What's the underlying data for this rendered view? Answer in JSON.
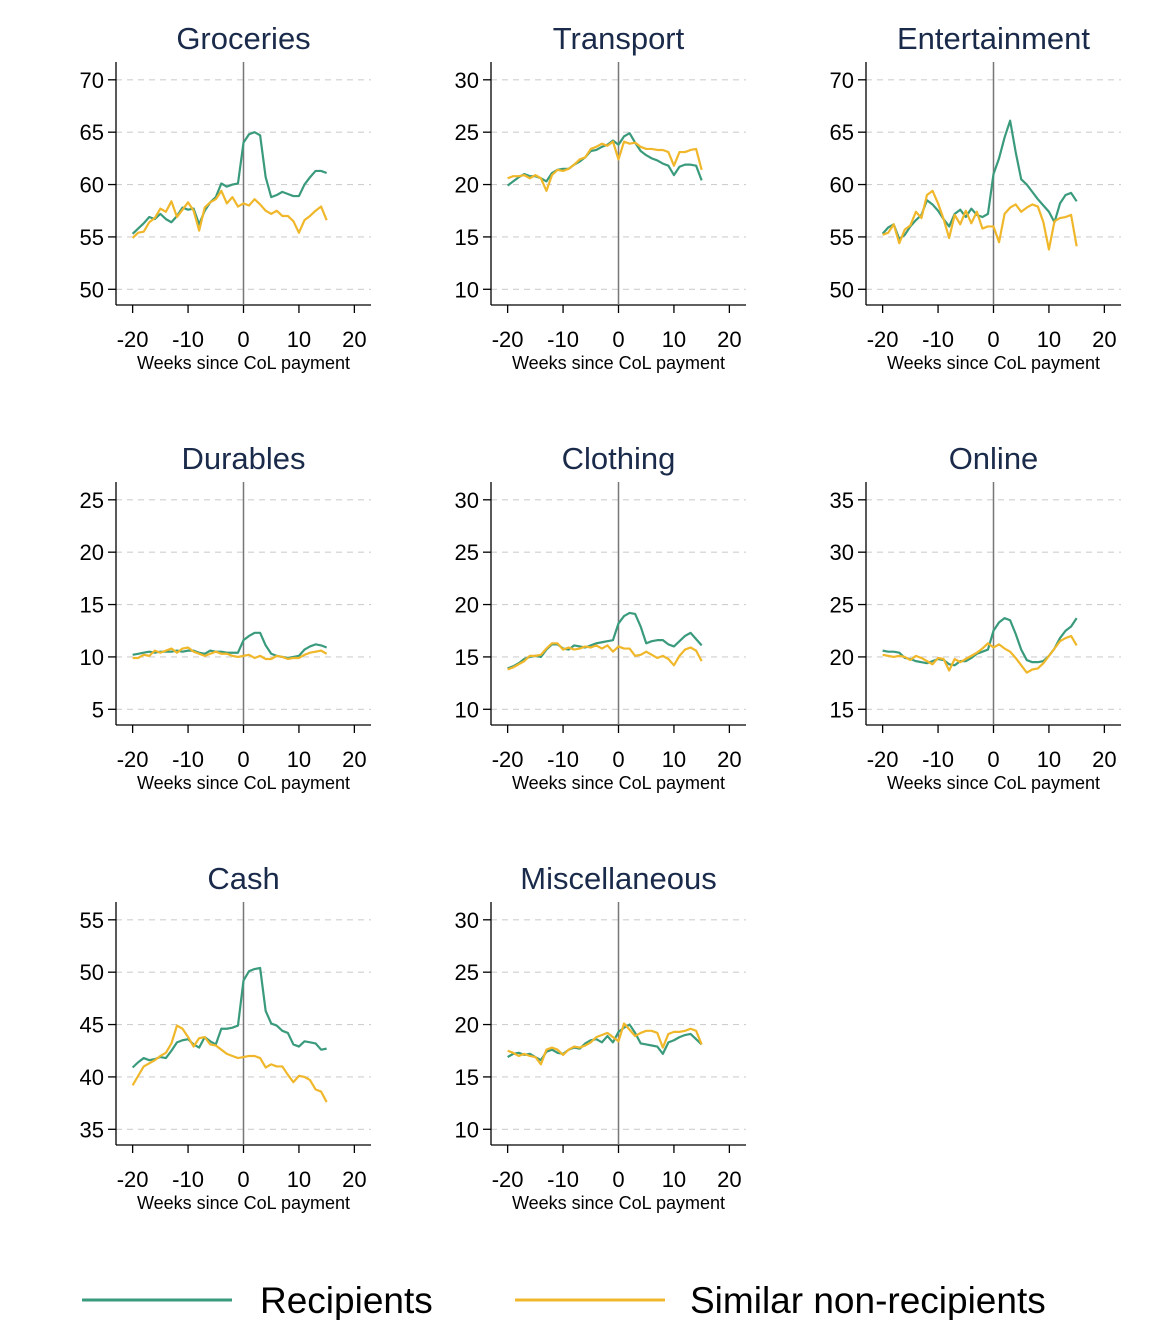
{
  "chart_data": [
    {
      "type": "line",
      "title": "Groceries",
      "xlabel": "Weeks since CoL payment",
      "x": [
        -20,
        -19,
        -18,
        -17,
        -16,
        -15,
        -14,
        -13,
        -12,
        -11,
        -10,
        -9,
        -8,
        -7,
        -6,
        -5,
        -4,
        -3,
        -2,
        -1,
        0,
        1,
        2,
        3,
        4,
        5,
        6,
        7,
        8,
        9,
        10,
        11,
        12,
        13,
        14,
        15
      ],
      "xlim": [
        -23,
        23
      ],
      "xticks": [
        -20,
        -10,
        0,
        10,
        20
      ],
      "ylim": [
        48.5,
        71.7
      ],
      "yticks": [
        50,
        55,
        60,
        65,
        70
      ],
      "grid": true,
      "vline": 0,
      "series": [
        {
          "name": "Recipients",
          "color": "#3a9a7c",
          "values": [
            55.3,
            55.8,
            56.3,
            56.9,
            56.7,
            57.2,
            56.7,
            56.4,
            57,
            57.8,
            57.6,
            57.7,
            56.2,
            57.5,
            58.3,
            58.8,
            60.1,
            59.8,
            60,
            60.1,
            64,
            64.8,
            65,
            64.7,
            60.7,
            58.8,
            59,
            59.3,
            59.1,
            58.9,
            58.9,
            60,
            60.7,
            61.3,
            61.3,
            61.1
          ]
        },
        {
          "name": "Similar non-recipients",
          "color": "#f0b72b",
          "values": [
            54.9,
            55.4,
            55.5,
            56.4,
            56.8,
            57.7,
            57.4,
            58.4,
            56.9,
            57.6,
            58.3,
            57.5,
            55.6,
            57.8,
            58.3,
            58.6,
            59.4,
            58.2,
            58.8,
            57.9,
            58.2,
            58,
            58.6,
            58.1,
            57.5,
            57.2,
            57.5,
            57,
            57,
            56.5,
            55.4,
            56.6,
            57,
            57.5,
            57.9,
            56.6
          ]
        }
      ]
    },
    {
      "type": "line",
      "title": "Transport",
      "xlabel": "Weeks since CoL payment",
      "x": [
        -20,
        -19,
        -18,
        -17,
        -16,
        -15,
        -14,
        -13,
        -12,
        -11,
        -10,
        -9,
        -8,
        -7,
        -6,
        -5,
        -4,
        -3,
        -2,
        -1,
        0,
        1,
        2,
        3,
        4,
        5,
        6,
        7,
        8,
        9,
        10,
        11,
        12,
        13,
        14,
        15
      ],
      "xlim": [
        -23,
        23
      ],
      "xticks": [
        -20,
        -10,
        0,
        10,
        20
      ],
      "ylim": [
        8.5,
        31.7
      ],
      "yticks": [
        10,
        15,
        20,
        25,
        30
      ],
      "grid": true,
      "vline": 0,
      "series": [
        {
          "color": "#3a9a7c",
          "values": [
            19.9,
            20.3,
            20.7,
            21,
            20.8,
            20.8,
            20.6,
            20.3,
            21.1,
            21.4,
            21.5,
            21.5,
            21.9,
            22.2,
            22.6,
            23.2,
            23.3,
            23.6,
            23.8,
            24.2,
            23.8,
            24.6,
            24.9,
            24,
            23.2,
            22.8,
            22.5,
            22.3,
            22,
            21.8,
            20.9,
            21.7,
            21.9,
            21.9,
            21.8,
            20.4
          ]
        },
        {
          "color": "#f0b72b",
          "values": [
            20.6,
            20.8,
            20.8,
            20.9,
            20.6,
            20.9,
            20.6,
            19.4,
            20.9,
            21.4,
            21.3,
            21.5,
            21.9,
            22.4,
            22.6,
            23.4,
            23.6,
            23.9,
            23.7,
            24.1,
            22.4,
            24.1,
            23.9,
            24,
            23.6,
            23.4,
            23.4,
            23.3,
            23.3,
            23.1,
            21.8,
            23.1,
            23.1,
            23.3,
            23.4,
            21.4
          ]
        }
      ]
    },
    {
      "type": "line",
      "title": "Entertainment",
      "xlabel": "Weeks since CoL payment",
      "x": [
        -20,
        -19,
        -18,
        -17,
        -16,
        -15,
        -14,
        -13,
        -12,
        -11,
        -10,
        -9,
        -8,
        -7,
        -6,
        -5,
        -4,
        -3,
        -2,
        -1,
        0,
        1,
        2,
        3,
        4,
        5,
        6,
        7,
        8,
        9,
        10,
        11,
        12,
        13,
        14,
        15
      ],
      "xlim": [
        -23,
        23
      ],
      "xticks": [
        -20,
        -10,
        0,
        10,
        20
      ],
      "ylim": [
        48.5,
        71.7
      ],
      "yticks": [
        50,
        55,
        60,
        65,
        70
      ],
      "grid": true,
      "vline": 0,
      "series": [
        {
          "color": "#3a9a7c",
          "values": [
            55.3,
            55.9,
            56.2,
            54.8,
            55.2,
            56,
            56.6,
            57.1,
            58.5,
            58.1,
            57.5,
            56.7,
            56,
            57.2,
            57.6,
            56.9,
            57.7,
            57.1,
            56.9,
            57.2,
            61,
            62.5,
            64.5,
            66.1,
            63.1,
            60.5,
            60,
            59.3,
            58.6,
            58,
            57.4,
            56.4,
            58.2,
            59,
            59.2,
            58.4
          ]
        },
        {
          "color": "#f0b72b",
          "values": [
            55.2,
            55.4,
            56.2,
            54.4,
            55.7,
            56.1,
            57.4,
            56.8,
            59,
            59.4,
            58.2,
            56.7,
            54.9,
            57.1,
            56.2,
            57.5,
            56.3,
            57.4,
            55.8,
            56,
            56,
            54.5,
            57.2,
            57.8,
            58.1,
            57.4,
            57.8,
            58.1,
            57.9,
            56.4,
            53.8,
            56.5,
            56.8,
            56.9,
            57.1,
            54.1
          ]
        }
      ]
    },
    {
      "type": "line",
      "title": "Durables",
      "xlabel": "Weeks since CoL payment",
      "x": [
        -20,
        -19,
        -18,
        -17,
        -16,
        -15,
        -14,
        -13,
        -12,
        -11,
        -10,
        -9,
        -8,
        -7,
        -6,
        -5,
        -4,
        -3,
        -2,
        -1,
        0,
        1,
        2,
        3,
        4,
        5,
        6,
        7,
        8,
        9,
        10,
        11,
        12,
        13,
        14,
        15
      ],
      "xlim": [
        -23,
        23
      ],
      "xticks": [
        -20,
        -10,
        0,
        10,
        20
      ],
      "ylim": [
        3.5,
        26.7
      ],
      "yticks": [
        5,
        10,
        15,
        20,
        25
      ],
      "grid": true,
      "vline": 0,
      "series": [
        {
          "color": "#3a9a7c",
          "values": [
            10.2,
            10.3,
            10.4,
            10.5,
            10.4,
            10.5,
            10.5,
            10.5,
            10.6,
            10.5,
            10.6,
            10.6,
            10.4,
            10.3,
            10.6,
            10.5,
            10.5,
            10.4,
            10.4,
            10.4,
            11.6,
            12,
            12.3,
            12.3,
            11.1,
            10.3,
            10.1,
            10,
            9.9,
            10,
            10.1,
            10.7,
            11,
            11.2,
            11.1,
            10.9
          ]
        },
        {
          "color": "#f0b72b",
          "values": [
            9.9,
            9.9,
            10.2,
            10.1,
            10.6,
            10.4,
            10.6,
            10.8,
            10.4,
            10.8,
            10.9,
            10.5,
            10.3,
            10.1,
            10.3,
            10.5,
            10.3,
            10.3,
            10.1,
            10,
            10.1,
            10.2,
            9.9,
            10.1,
            9.8,
            9.8,
            10.1,
            10,
            9.8,
            9.9,
            9.9,
            10.2,
            10.4,
            10.5,
            10.6,
            10.3
          ]
        }
      ]
    },
    {
      "type": "line",
      "title": "Clothing",
      "xlabel": "Weeks since CoL payment",
      "x": [
        -20,
        -19,
        -18,
        -17,
        -16,
        -15,
        -14,
        -13,
        -12,
        -11,
        -10,
        -9,
        -8,
        -7,
        -6,
        -5,
        -4,
        -3,
        -2,
        -1,
        0,
        1,
        2,
        3,
        4,
        5,
        6,
        7,
        8,
        9,
        10,
        11,
        12,
        13,
        14,
        15
      ],
      "xlim": [
        -23,
        23
      ],
      "xticks": [
        -20,
        -10,
        0,
        10,
        20
      ],
      "ylim": [
        8.5,
        31.7
      ],
      "yticks": [
        10,
        15,
        20,
        25,
        30
      ],
      "grid": true,
      "vline": 0,
      "series": [
        {
          "color": "#3a9a7c",
          "values": [
            13.9,
            14.1,
            14.4,
            14.8,
            15,
            15.1,
            15,
            15.7,
            16.2,
            16.2,
            15.8,
            15.7,
            16.1,
            16,
            15.9,
            16.1,
            16.3,
            16.4,
            16.5,
            16.6,
            18.2,
            18.9,
            19.2,
            19.1,
            17.9,
            16.3,
            16.5,
            16.6,
            16.6,
            16.2,
            16,
            16.5,
            17,
            17.3,
            16.7,
            16.1
          ]
        },
        {
          "color": "#f0b72b",
          "values": [
            13.8,
            14,
            14.3,
            14.6,
            15.1,
            15.1,
            15.2,
            15.8,
            16.3,
            16.3,
            15.7,
            15.9,
            15.7,
            15.8,
            16,
            15.9,
            16.1,
            15.8,
            16.1,
            15.5,
            16,
            15.8,
            15.8,
            15.1,
            15.2,
            15.5,
            15.2,
            14.9,
            15.1,
            14.8,
            14.2,
            15.1,
            15.7,
            15.9,
            15.6,
            14.6
          ]
        }
      ]
    },
    {
      "type": "line",
      "title": "Online",
      "xlabel": "Weeks since CoL payment",
      "x": [
        -20,
        -19,
        -18,
        -17,
        -16,
        -15,
        -14,
        -13,
        -12,
        -11,
        -10,
        -9,
        -8,
        -7,
        -6,
        -5,
        -4,
        -3,
        -2,
        -1,
        0,
        1,
        2,
        3,
        4,
        5,
        6,
        7,
        8,
        9,
        10,
        11,
        12,
        13,
        14,
        15
      ],
      "xlim": [
        -23,
        23
      ],
      "xticks": [
        -20,
        -10,
        0,
        10,
        20
      ],
      "ylim": [
        13.5,
        36.7
      ],
      "yticks": [
        15,
        20,
        25,
        30,
        35
      ],
      "grid": true,
      "vline": 0,
      "series": [
        {
          "color": "#3a9a7c",
          "values": [
            20.6,
            20.5,
            20.5,
            20.4,
            19.9,
            19.8,
            19.6,
            19.5,
            19.4,
            19.6,
            19.8,
            19.7,
            19.3,
            19.2,
            19.6,
            19.6,
            19.9,
            20.3,
            20.5,
            20.7,
            22.5,
            23.3,
            23.7,
            23.5,
            22.2,
            20.7,
            19.7,
            19.5,
            19.5,
            19.6,
            20.1,
            20.8,
            21.8,
            22.5,
            22.9,
            23.7
          ]
        },
        {
          "color": "#f0b72b",
          "values": [
            20.2,
            20.1,
            20,
            20.1,
            20,
            19.7,
            20.1,
            19.9,
            19.6,
            19.3,
            19.9,
            19.8,
            18.7,
            19.8,
            19.5,
            19.8,
            20.1,
            20.4,
            20.8,
            21.3,
            20.9,
            21.2,
            20.8,
            20.5,
            19.9,
            19.2,
            18.5,
            18.8,
            18.9,
            19.4,
            20.1,
            20.8,
            21.5,
            21.8,
            22,
            21.1
          ]
        }
      ]
    },
    {
      "type": "line",
      "title": "Cash",
      "xlabel": "Weeks since CoL payment",
      "x": [
        -20,
        -19,
        -18,
        -17,
        -16,
        -15,
        -14,
        -13,
        -12,
        -11,
        -10,
        -9,
        -8,
        -7,
        -6,
        -5,
        -4,
        -3,
        -2,
        -1,
        0,
        1,
        2,
        3,
        4,
        5,
        6,
        7,
        8,
        9,
        10,
        11,
        12,
        13,
        14,
        15
      ],
      "xlim": [
        -23,
        23
      ],
      "xticks": [
        -20,
        -10,
        0,
        10,
        20
      ],
      "ylim": [
        33.5,
        56.7
      ],
      "yticks": [
        35,
        40,
        45,
        50,
        55
      ],
      "grid": true,
      "vline": 0,
      "series": [
        {
          "color": "#3a9a7c",
          "values": [
            40.9,
            41.4,
            41.8,
            41.6,
            41.7,
            41.9,
            41.8,
            42.5,
            43.3,
            43.5,
            43.6,
            43.1,
            42.8,
            43.8,
            43.4,
            43.1,
            44.6,
            44.6,
            44.7,
            44.9,
            49.2,
            50.1,
            50.3,
            50.4,
            46.3,
            45.1,
            44.9,
            44.4,
            44.2,
            43.1,
            42.9,
            43.4,
            43.3,
            43.2,
            42.6,
            42.7
          ]
        },
        {
          "color": "#f0b72b",
          "values": [
            39.2,
            40.1,
            41,
            41.3,
            41.6,
            42,
            42.3,
            43.2,
            44.9,
            44.6,
            43.8,
            42.9,
            43.7,
            43.8,
            43.1,
            43,
            42.6,
            42.2,
            42,
            41.8,
            41.9,
            42,
            42,
            41.8,
            40.9,
            41.2,
            41,
            41,
            40.2,
            39.5,
            40.1,
            40,
            39.7,
            38.8,
            38.6,
            37.6
          ]
        }
      ]
    },
    {
      "type": "line",
      "title": "Miscellaneous",
      "xlabel": "Weeks since CoL payment",
      "x": [
        -20,
        -19,
        -18,
        -17,
        -16,
        -15,
        -14,
        -13,
        -12,
        -11,
        -10,
        -9,
        -8,
        -7,
        -6,
        -5,
        -4,
        -3,
        -2,
        -1,
        0,
        1,
        2,
        3,
        4,
        5,
        6,
        7,
        8,
        9,
        10,
        11,
        12,
        13,
        14,
        15
      ],
      "xlim": [
        -23,
        23
      ],
      "xticks": [
        -20,
        -10,
        0,
        10,
        20
      ],
      "ylim": [
        8.5,
        31.7
      ],
      "yticks": [
        10,
        15,
        20,
        25,
        30
      ],
      "grid": true,
      "vline": 0,
      "series": [
        {
          "color": "#3a9a7c",
          "values": [
            16.9,
            17.2,
            17.3,
            17.1,
            17.2,
            16.9,
            16.6,
            17.4,
            17.6,
            17.3,
            17.2,
            17.6,
            17.8,
            17.7,
            18.2,
            18.5,
            18.6,
            18.3,
            18.9,
            18.3,
            19.3,
            19.7,
            20,
            19.2,
            18.2,
            18.1,
            18,
            17.9,
            17.2,
            18.3,
            18.5,
            18.8,
            19,
            19.1,
            18.6,
            18.1
          ]
        },
        {
          "color": "#f0b72b",
          "values": [
            17.5,
            17.3,
            17,
            17.2,
            17,
            16.9,
            16.2,
            17.6,
            17.8,
            17.6,
            17.1,
            17.6,
            17.9,
            17.8,
            18,
            18.3,
            18.8,
            19,
            19.2,
            18.8,
            18.4,
            20.1,
            19.5,
            18.9,
            19.2,
            19.4,
            19.4,
            19.2,
            17.8,
            19.1,
            19.3,
            19.3,
            19.4,
            19.6,
            19.4,
            18.1
          ]
        }
      ]
    }
  ]
}
